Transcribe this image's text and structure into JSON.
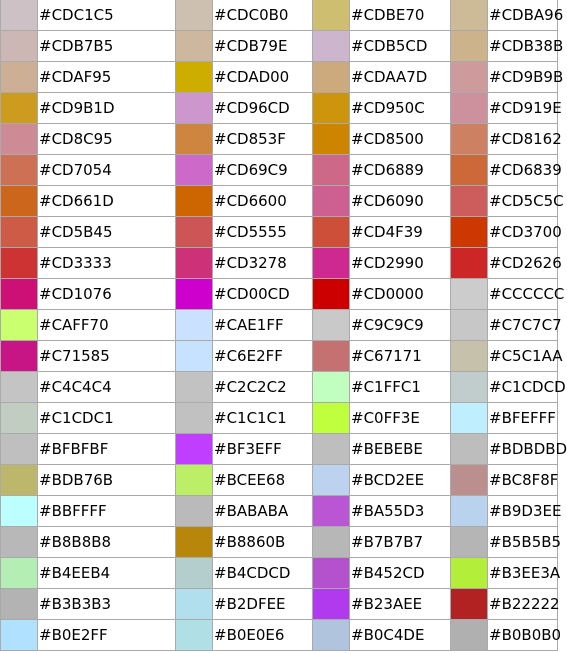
{
  "table": {
    "rows": [
      [
        "#CDC1C5",
        "#CDC0B0",
        "#CDBE70",
        "#CDBA96"
      ],
      [
        "#CDB7B5",
        "#CDB79E",
        "#CDB5CD",
        "#CDB38B"
      ],
      [
        "#CDAF95",
        "#CDAD00",
        "#CDAA7D",
        "#CD9B9B"
      ],
      [
        "#CD9B1D",
        "#CD96CD",
        "#CD950C",
        "#CD919E"
      ],
      [
        "#CD8C95",
        "#CD853F",
        "#CD8500",
        "#CD8162"
      ],
      [
        "#CD7054",
        "#CD69C9",
        "#CD6889",
        "#CD6839"
      ],
      [
        "#CD661D",
        "#CD6600",
        "#CD6090",
        "#CD5C5C"
      ],
      [
        "#CD5B45",
        "#CD5555",
        "#CD4F39",
        "#CD3700"
      ],
      [
        "#CD3333",
        "#CD3278",
        "#CD2990",
        "#CD2626"
      ],
      [
        "#CD1076",
        "#CD00CD",
        "#CD0000",
        "#CCCCCC"
      ],
      [
        "#CAFF70",
        "#CAE1FF",
        "#C9C9C9",
        "#C7C7C7"
      ],
      [
        "#C71585",
        "#C6E2FF",
        "#C67171",
        "#C5C1AA"
      ],
      [
        "#C4C4C4",
        "#C2C2C2",
        "#C1FFC1",
        "#C1CDCD"
      ],
      [
        "#C1CDC1",
        "#C1C1C1",
        "#C0FF3E",
        "#BFEFFF"
      ],
      [
        "#BFBFBF",
        "#BF3EFF",
        "#BEBEBE",
        "#BDBDBD"
      ],
      [
        "#BDB76B",
        "#BCEE68",
        "#BCD2EE",
        "#BC8F8F"
      ],
      [
        "#BBFFFF",
        "#BABABA",
        "#BA55D3",
        "#B9D3EE"
      ],
      [
        "#B8B8B8",
        "#B8860B",
        "#B7B7B7",
        "#B5B5B5"
      ],
      [
        "#B4EEB4",
        "#B4CDCD",
        "#B452CD",
        "#B3EE3A"
      ],
      [
        "#B3B3B3",
        "#B2DFEE",
        "#B23AEE",
        "#B22222"
      ],
      [
        "#B0E2FF",
        "#B0E0E6",
        "#B0C4DE",
        "#B0B0B0"
      ]
    ]
  }
}
